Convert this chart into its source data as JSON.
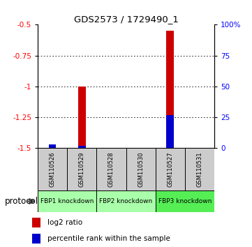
{
  "title": "GDS2573 / 1729490_1",
  "samples": [
    "GSM110526",
    "GSM110529",
    "GSM110528",
    "GSM110530",
    "GSM110527",
    "GSM110531"
  ],
  "log2_ratio": [
    -1.47,
    -1.0,
    -1.499,
    -1.499,
    -0.55,
    -1.499
  ],
  "percentile_rank": [
    3,
    2,
    0,
    0,
    27,
    0
  ],
  "ylim_left": [
    -1.5,
    -0.5
  ],
  "ylim_right": [
    0,
    100
  ],
  "yticks_left": [
    -1.5,
    -1.25,
    -1.0,
    -0.75,
    -0.5
  ],
  "yticks_right": [
    0,
    25,
    50,
    75,
    100
  ],
  "ytick_labels_left": [
    "-1.5",
    "-1.25",
    "-1",
    "-0.75",
    "-0.5"
  ],
  "ytick_labels_right": [
    "0",
    "25",
    "50",
    "75",
    "100%"
  ],
  "gridlines": [
    -0.75,
    -1.0,
    -1.25
  ],
  "groups": [
    {
      "label": "FBP1 knockdown",
      "start": 0,
      "end": 2,
      "color": "#aaffaa"
    },
    {
      "label": "FBP2 knockdown",
      "start": 2,
      "end": 4,
      "color": "#aaffaa"
    },
    {
      "label": "FBP3 knockdown",
      "start": 4,
      "end": 6,
      "color": "#55ee55"
    }
  ],
  "bar_color_red": "#cc0000",
  "bar_color_blue": "#0000cc",
  "background_color": "#ffffff",
  "protocol_label": "protocol",
  "legend_red": "log2 ratio",
  "legend_blue": "percentile rank within the sample"
}
